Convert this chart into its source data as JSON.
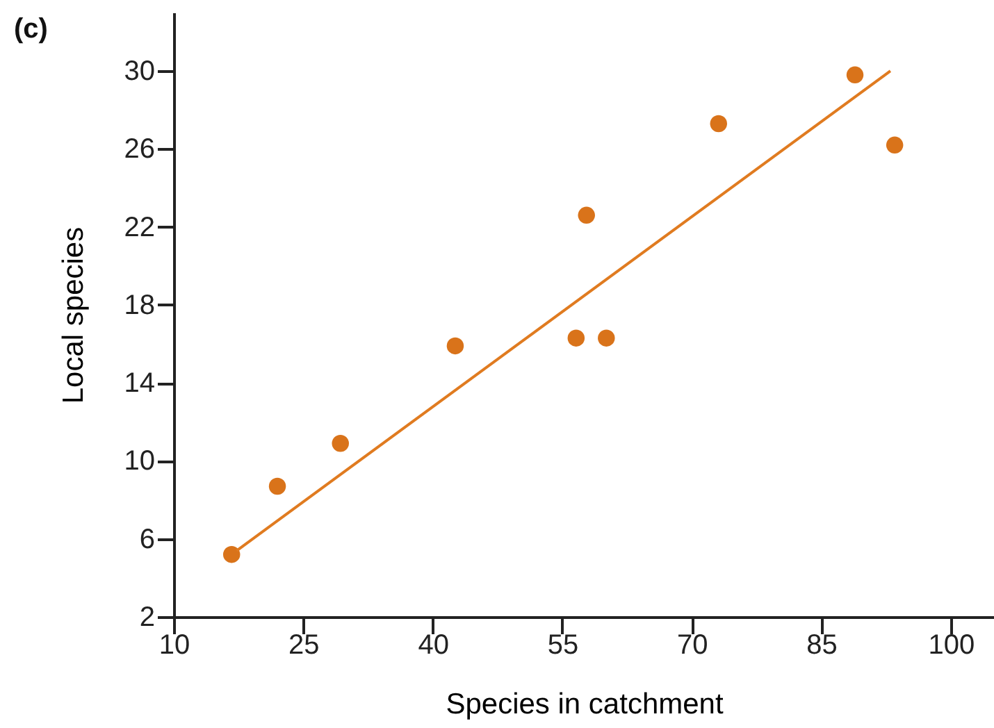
{
  "chart_data": {
    "type": "scatter",
    "xlabel": "Species in catchment",
    "ylabel": "Local species",
    "annotations": [
      "(c)"
    ],
    "xlim": [
      10,
      105
    ],
    "xticks": [
      10,
      25,
      40,
      55,
      70,
      85,
      100
    ],
    "ylim": [
      2,
      33
    ],
    "yticks": [
      2,
      6,
      10,
      14,
      18,
      22,
      26,
      30
    ],
    "series": [
      {
        "marker": "circle",
        "color": "#d9731a",
        "x": [
          16.7,
          22.0,
          29.3,
          42.6,
          56.6,
          57.8,
          60.1,
          73.1,
          88.9,
          93.5
        ],
        "values": [
          5.2,
          8.7,
          10.9,
          15.9,
          16.3,
          22.6,
          16.3,
          27.3,
          29.8,
          26.2
        ]
      },
      {
        "type": "line",
        "color": "#e07b20",
        "x": [
          17.3,
          93.0
        ],
        "values": [
          5.4,
          30.0
        ]
      }
    ]
  }
}
